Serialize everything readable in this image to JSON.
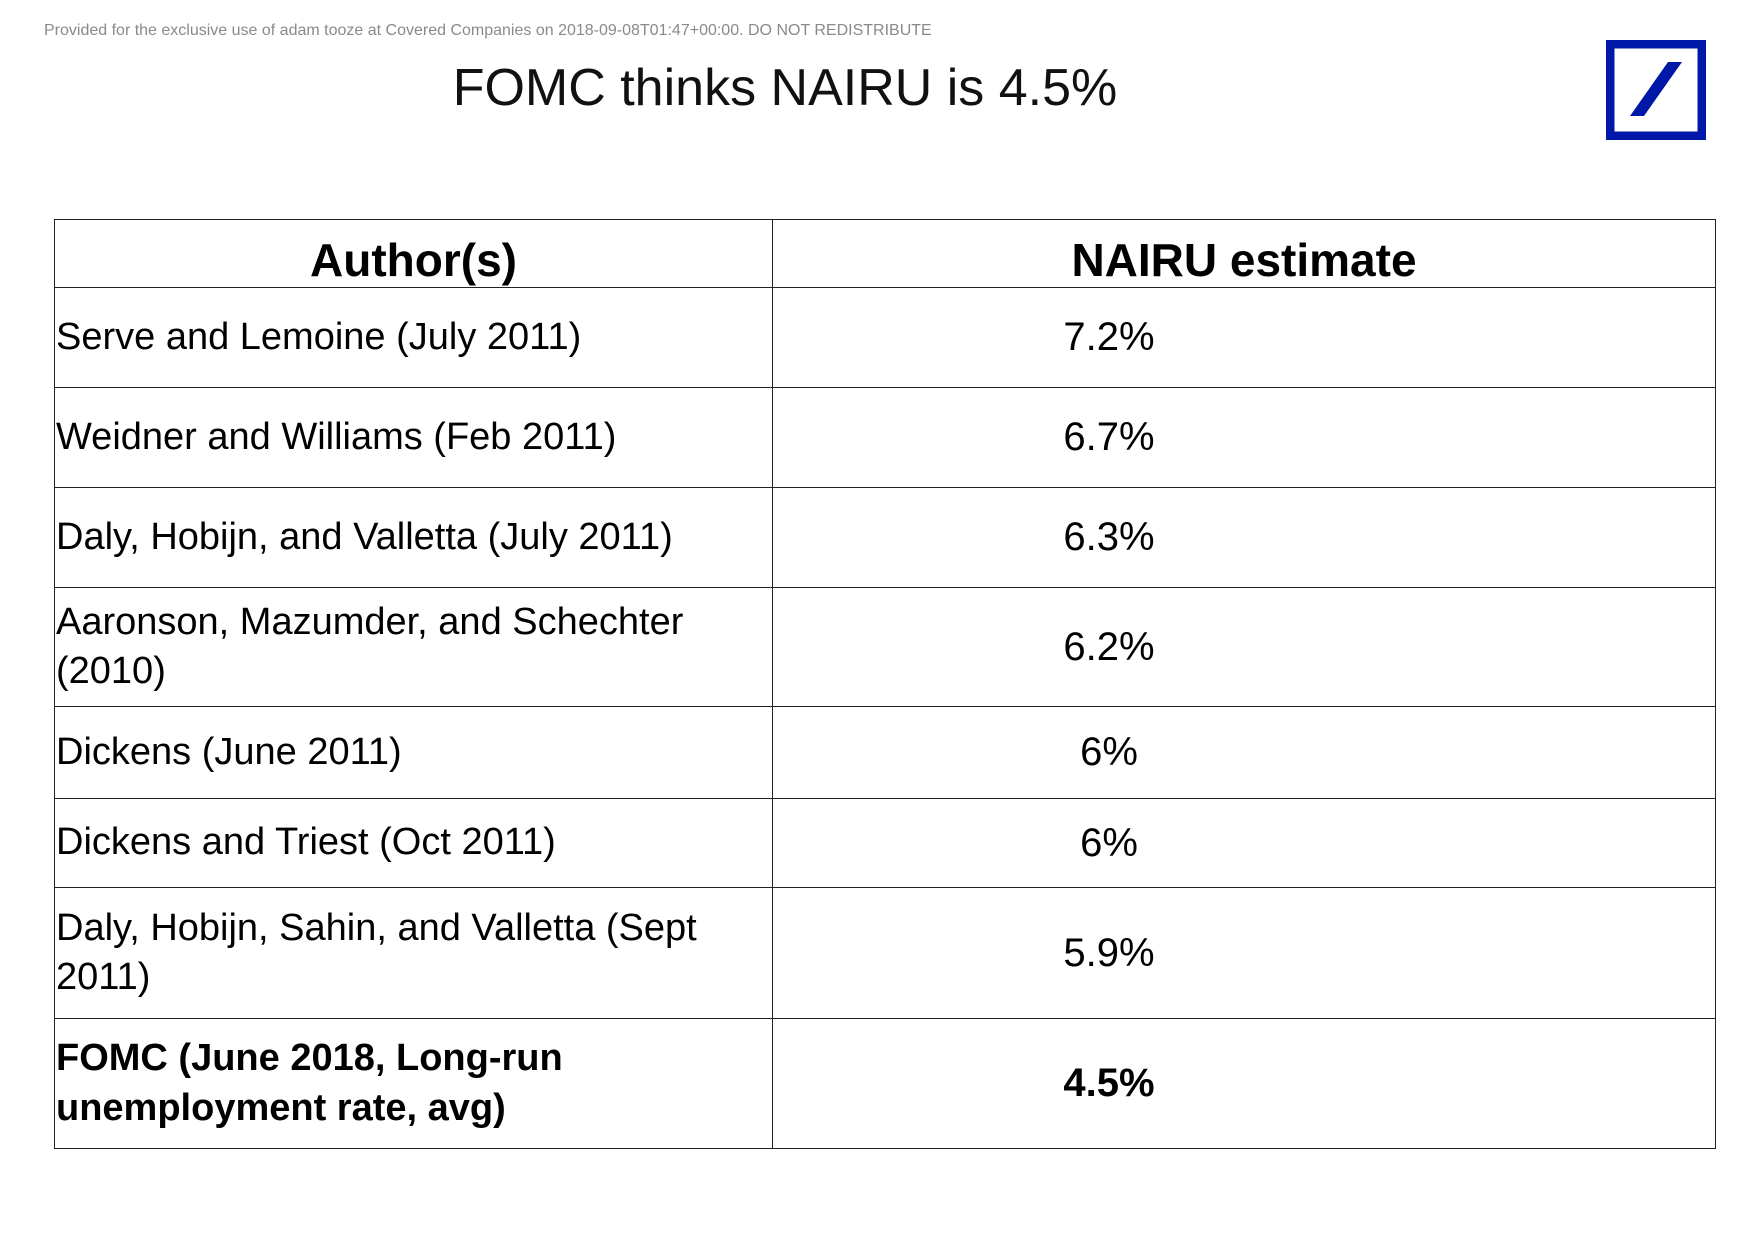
{
  "header": {
    "disclaimer": "Provided for the exclusive use of adam tooze at Covered Companies on 2018-09-08T01:47+00:00. DO NOT REDISTRIBUTE",
    "title": "FOMC thinks NAIRU is 4.5%"
  },
  "logo": {
    "icon": "deutsche-bank-slash-logo",
    "color": "#0018a8"
  },
  "table": {
    "headers": [
      "Author(s)",
      "NAIRU estimate"
    ],
    "rows": [
      {
        "author": "Serve and Lemoine (July 2011)",
        "estimate": "7.2%",
        "bold": false
      },
      {
        "author": "Weidner and Williams (Feb 2011)",
        "estimate": "6.7%",
        "bold": false
      },
      {
        "author": "Daly, Hobijn, and Valletta (July 2011)",
        "estimate": "6.3%",
        "bold": false
      },
      {
        "author": "Aaronson, Mazumder, and Schechter (2010)",
        "estimate": "6.2%",
        "bold": false
      },
      {
        "author": "Dickens (June 2011)",
        "estimate": "6%",
        "bold": false
      },
      {
        "author": "Dickens and Triest (Oct 2011)",
        "estimate": "6%",
        "bold": false
      },
      {
        "author": "Daly, Hobijn, Sahin, and Valletta (Sept 2011)",
        "estimate": "5.9%",
        "bold": false
      },
      {
        "author": "FOMC (June 2018, Long-run unemployment rate, avg)",
        "estimate": "4.5%",
        "bold": true
      }
    ]
  },
  "chart_data": {
    "type": "table",
    "title": "FOMC thinks NAIRU is 4.5%",
    "columns": [
      "Author(s)",
      "NAIRU estimate"
    ],
    "rows": [
      [
        "Serve and Lemoine (July 2011)",
        "7.2%"
      ],
      [
        "Weidner and Williams (Feb 2011)",
        "6.7%"
      ],
      [
        "Daly, Hobijn, and Valletta (July 2011)",
        "6.3%"
      ],
      [
        "Aaronson, Mazumder, and Schechter (2010)",
        "6.2%"
      ],
      [
        "Dickens (June 2011)",
        "6%"
      ],
      [
        "Dickens and Triest (Oct 2011)",
        "6%"
      ],
      [
        "Daly, Hobijn, Sahin, and Valletta (Sept 2011)",
        "5.9%"
      ],
      [
        "FOMC (June 2018, Long-run unemployment rate, avg)",
        "4.5%"
      ]
    ]
  }
}
